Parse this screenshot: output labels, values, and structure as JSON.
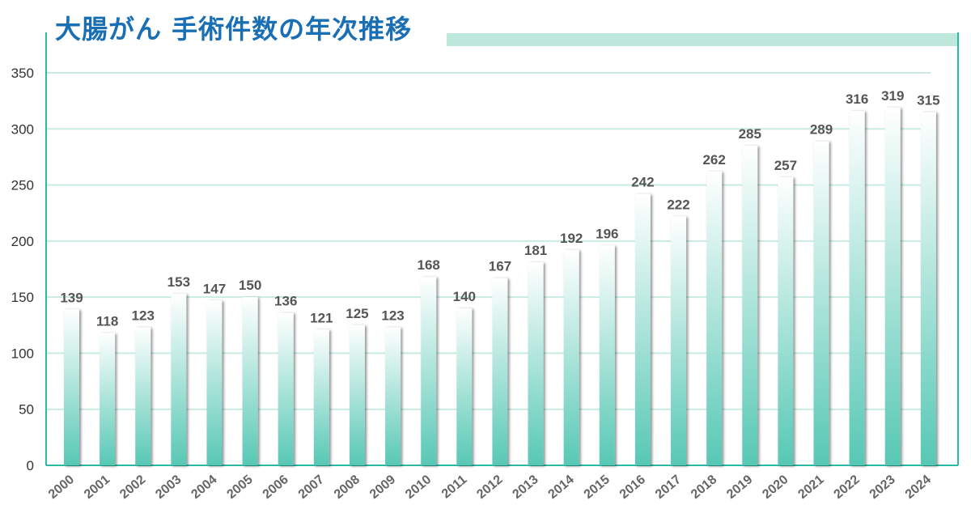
{
  "chart_data": {
    "type": "bar",
    "title": "大腸がん 手術件数の年次推移",
    "xlabel": "",
    "ylabel": "",
    "categories": [
      "2000",
      "2001",
      "2002",
      "2003",
      "2004",
      "2005",
      "2006",
      "2007",
      "2008",
      "2009",
      "2010",
      "2011",
      "2012",
      "2013",
      "2014",
      "2015",
      "2016",
      "2017",
      "2018",
      "2019",
      "2020",
      "2021",
      "2022",
      "2023",
      "2024"
    ],
    "values": [
      139,
      118,
      123,
      153,
      147,
      150,
      136,
      121,
      125,
      123,
      168,
      140,
      167,
      181,
      192,
      196,
      242,
      222,
      262,
      285,
      257,
      289,
      316,
      319,
      315
    ],
    "ylim": [
      0,
      350
    ],
    "yticks": [
      0,
      50,
      100,
      150,
      200,
      250,
      300,
      350
    ],
    "grid": true,
    "legend": "none",
    "colors": {
      "bar_top": "#ffffff",
      "bar_bottom": "#57c8b4",
      "grid": "#c9ece2",
      "axis": "#2ab9a2",
      "title": "#1a6fb4",
      "title_band": "#bfe8dc"
    }
  }
}
